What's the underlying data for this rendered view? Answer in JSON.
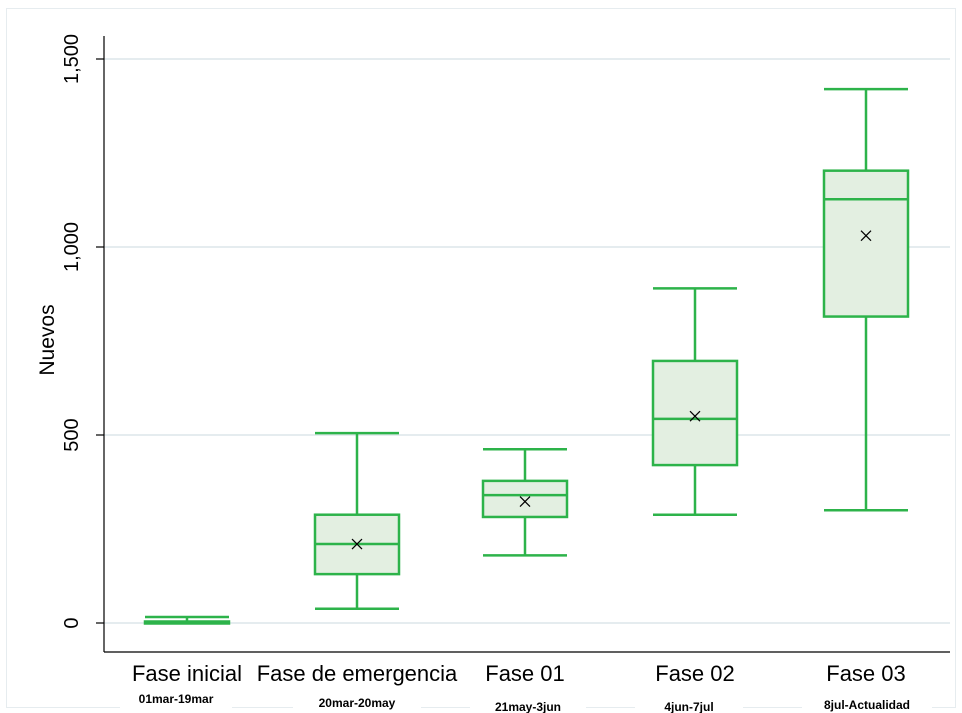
{
  "chart_data": {
    "type": "box",
    "ylabel": "Nuevos",
    "ylim": [
      -75,
      1620
    ],
    "yticks": [
      0,
      500,
      1000,
      1500
    ],
    "ytick_labels": [
      "0",
      "500",
      "1,000",
      "1,500"
    ],
    "grid": true,
    "colors": {
      "box_stroke": "#2db34a",
      "box_fill": "#e3efe1",
      "mean_marker": "#000000"
    },
    "categories": [
      {
        "label": "Fase inicial",
        "sub": "01mar-19mar",
        "min": 0,
        "q1": 0,
        "median": 2,
        "q3": 4,
        "max": 16,
        "mean": 3
      },
      {
        "label": "Fase de emergencia",
        "sub": "20mar-20may",
        "min": 38,
        "q1": 130,
        "median": 210,
        "q3": 288,
        "max": 505,
        "mean": 210
      },
      {
        "label": "Fase 01",
        "sub": "21may-3jun",
        "min": 180,
        "q1": 282,
        "median": 340,
        "q3": 378,
        "max": 462,
        "mean": 323
      },
      {
        "label": "Fase 02",
        "sub": "4jun-7jul",
        "min": 288,
        "q1": 420,
        "median": 543,
        "q3": 697,
        "max": 890,
        "mean": 550
      },
      {
        "label": "Fase 03",
        "sub": "8jul-Actualidad",
        "min": 300,
        "q1": 815,
        "median": 1127,
        "q3": 1203,
        "max": 1420,
        "mean": 1030
      }
    ]
  }
}
